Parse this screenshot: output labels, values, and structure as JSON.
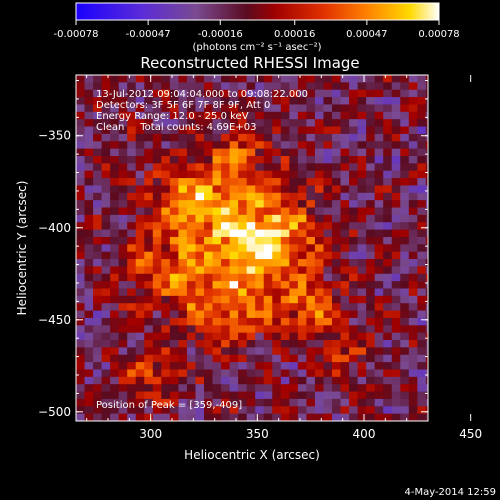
{
  "chart_data": {
    "type": "heatmap",
    "title": "Reconstructed RHESSI Image",
    "xlabel": "Heliocentric X (arcsec)",
    "ylabel": "Heliocentric Y (arcsec)",
    "xlim": [
      265,
      430
    ],
    "ylim": [
      -505,
      -317
    ],
    "xticks": [
      300,
      350,
      400,
      450
    ],
    "yticks": [
      -350,
      -400,
      -450,
      -500
    ],
    "colorbar": {
      "ticks": [
        "-0.00078",
        "-0.00047",
        "-0.00016",
        "0.00016",
        "0.00047",
        "0.00078"
      ],
      "range": [
        -0.00078,
        0.00078
      ],
      "unit_label": "(photons cm⁻² s⁻¹ asec⁻²)"
    },
    "annotations": [
      "13-Jul-2012 09:04:04.000 to 09:08:22.000",
      "Detectors: 3F 5F 6F 7F 8F 9F, Att 0",
      "Energy Range: 12.0 - 25.0 keV",
      "Clean     Total counts: 4.69E+03"
    ],
    "peak_text": "Position of Peak = [359,-409]",
    "peak": [
      359,
      -409
    ],
    "sources": [
      {
        "x": 352,
        "y": -404,
        "sigma": 18,
        "amp": 0.00078
      },
      {
        "x": 318,
        "y": -385,
        "sigma": 13,
        "amp": 0.00055
      },
      {
        "x": 335,
        "y": -440,
        "sigma": 16,
        "amp": 0.0005
      },
      {
        "x": 375,
        "y": -445,
        "sigma": 11,
        "amp": 0.00045
      },
      {
        "x": 305,
        "y": -420,
        "sigma": 14,
        "amp": 0.0004
      },
      {
        "x": 340,
        "y": -360,
        "sigma": 12,
        "amp": 0.00035
      },
      {
        "x": 300,
        "y": -480,
        "sigma": 10,
        "amp": 0.0003
      },
      {
        "x": 390,
        "y": -470,
        "sigma": 9,
        "amp": 0.00025
      }
    ],
    "grid": false,
    "colormap": "ritchey-blue-to-white"
  },
  "footer": {
    "date_stamp": "4-May-2014 12:59"
  }
}
